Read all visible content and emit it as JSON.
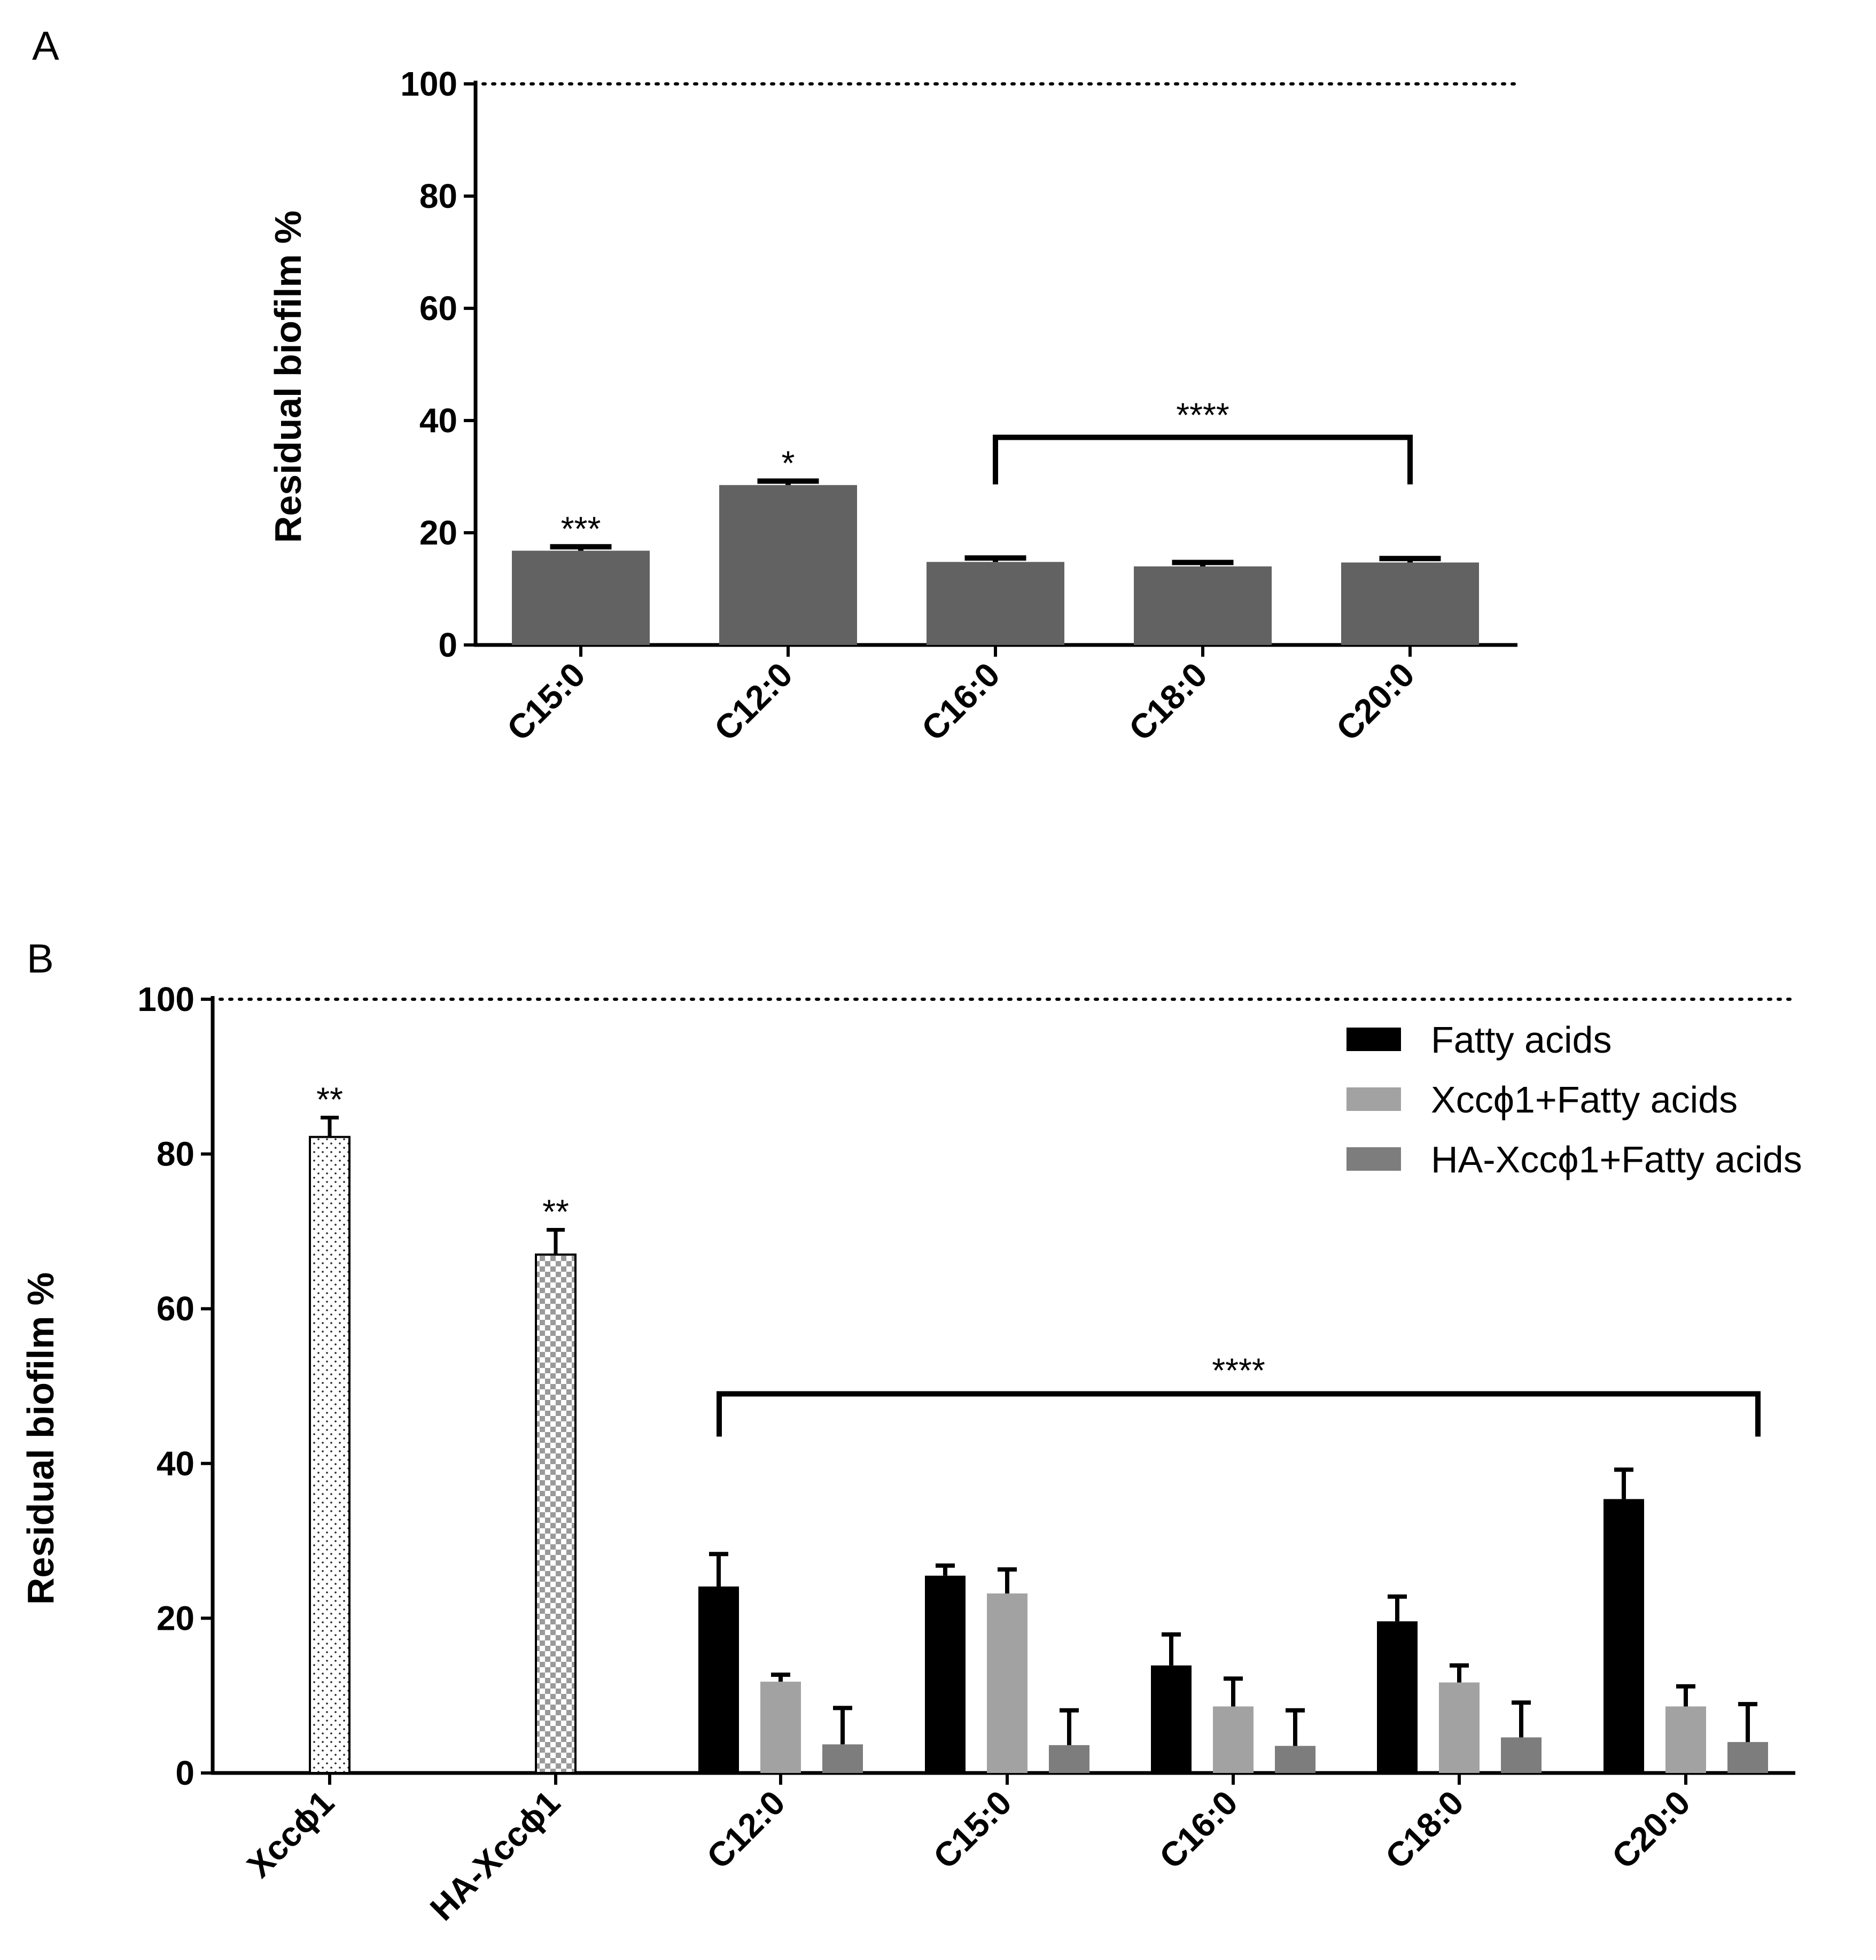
{
  "chart_data": [
    {
      "panel": "A",
      "type": "bar",
      "ylabel": "Residual biofilm %",
      "ylim": [
        0,
        100
      ],
      "yticks": [
        "0",
        "20",
        "40",
        "60",
        "80",
        "100"
      ],
      "reference_line": 100,
      "categories": [
        "C15:0",
        "C12:0",
        "C16:0",
        "C18:0",
        "C20:0"
      ],
      "values": [
        16.8,
        28.5,
        14.8,
        14.0,
        14.7
      ],
      "errors": [
        0.7,
        0.7,
        0.7,
        0.7,
        0.7
      ],
      "bar_color": "#626262",
      "significance": [
        "***",
        "*",
        "",
        "",
        ""
      ],
      "bracket": {
        "from": "C16:0",
        "to": "C20:0",
        "label": "****",
        "y_value": 37
      }
    },
    {
      "panel": "B",
      "type": "bar",
      "ylabel": "Residual biofilm %",
      "ylim": [
        0,
        100
      ],
      "yticks": [
        "0",
        "20",
        "40",
        "60",
        "80",
        "100"
      ],
      "reference_line": 100,
      "controls": [
        {
          "label": "Xccϕ1",
          "value": 82.2,
          "error": 2.5,
          "pattern": "dots",
          "significance": "**"
        },
        {
          "label": "HA-Xccϕ1",
          "value": 67.0,
          "error": 3.2,
          "pattern": "checker",
          "significance": "**"
        }
      ],
      "categories": [
        "C12:0",
        "C15:0",
        "C16:0",
        "C18:0",
        "C20:0"
      ],
      "series": [
        {
          "name": "Fatty acids",
          "color": "#000000",
          "values": [
            24.1,
            25.5,
            13.9,
            19.6,
            35.4
          ],
          "errors": [
            4.2,
            1.3,
            4.0,
            3.2,
            3.8
          ]
        },
        {
          "name": "Xccϕ1+Fatty acids",
          "color": "#a2a2a2",
          "values": [
            11.8,
            23.2,
            8.6,
            11.7,
            8.6
          ],
          "errors": [
            0.9,
            3.1,
            3.6,
            2.2,
            2.6
          ]
        },
        {
          "name": "HA-Xccϕ1+Fatty acids",
          "color": "#7d7d7d",
          "values": [
            3.7,
            3.6,
            3.5,
            4.6,
            4.0
          ],
          "errors": [
            4.7,
            4.5,
            4.6,
            4.5,
            4.9
          ]
        }
      ],
      "bracket": {
        "from": "C12:0",
        "to": "C20:0",
        "label": "****",
        "y_value": 49
      },
      "legend_position": "top-right"
    }
  ],
  "panels": {
    "a": "A",
    "b": "B"
  }
}
